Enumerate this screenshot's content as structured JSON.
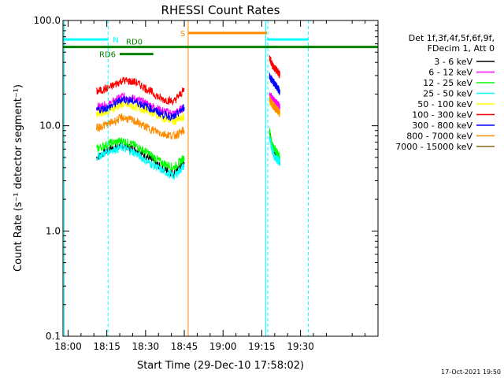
{
  "chart_data": {
    "type": "line",
    "title": "RHESSI Count Rates",
    "xlabel": "Start Time (29-Dec-10 17:58:02)",
    "ylabel": "Count Rate (s⁻¹ detector segment⁻¹)",
    "yscale": "log",
    "ylim": [
      0.1,
      100.0
    ],
    "xlim": [
      "17:58:02",
      "20:00:00"
    ],
    "x_ticks": [
      "18:00",
      "18:15",
      "18:30",
      "18:45",
      "19:00",
      "19:15",
      "19:30"
    ],
    "y_ticks": [
      "0.1",
      "1.0",
      "10.0",
      "100.0"
    ],
    "grid": false,
    "legend_position": "right",
    "legend_header": [
      "Det 1f,3f,4f,5f,6f,9f,",
      "FDecim 1, Att 0"
    ],
    "timestamp": "17-Oct-2021 19:50",
    "series": [
      {
        "name": "3 - 6 keV",
        "color": "#000000",
        "segments": [
          {
            "x": [
              "18:11",
              "18:16",
              "18:21",
              "18:26",
              "18:31",
              "18:36",
              "18:41",
              "18:45"
            ],
            "y": [
              5.0,
              6.0,
              6.5,
              6.0,
              5.0,
              4.0,
              3.5,
              4.5
            ]
          },
          {
            "x": [
              "19:18",
              "19:19",
              "19:20",
              "19:21",
              "19:22"
            ],
            "y": [
              9.0,
              6.0,
              5.5,
              5.0,
              4.5
            ]
          }
        ]
      },
      {
        "name": "6 - 12 keV",
        "color": "#ff00ff",
        "segments": [
          {
            "x": [
              "18:11",
              "18:16",
              "18:21",
              "18:26",
              "18:31",
              "18:36",
              "18:41",
              "18:45"
            ],
            "y": [
              15,
              16,
              19,
              18,
              16,
              14,
              13,
              15
            ]
          },
          {
            "x": [
              "19:18",
              "19:19",
              "19:20",
              "19:21",
              "19:22"
            ],
            "y": [
              20,
              18,
              17,
              16,
              15
            ]
          }
        ]
      },
      {
        "name": "12 - 25 keV",
        "color": "#00ff00",
        "segments": [
          {
            "x": [
              "18:11",
              "18:16",
              "18:21",
              "18:26",
              "18:31",
              "18:36",
              "18:41",
              "18:45"
            ],
            "y": [
              6.0,
              6.8,
              7.2,
              6.5,
              5.5,
              4.5,
              4.0,
              5.0
            ]
          },
          {
            "x": [
              "19:18",
              "19:19",
              "19:20",
              "19:21",
              "19:22"
            ],
            "y": [
              9.0,
              6.5,
              6.0,
              5.5,
              5.0
            ]
          }
        ]
      },
      {
        "name": "25 - 50 keV",
        "color": "#00ffff",
        "segments": [
          {
            "x": [
              "18:11",
              "18:16",
              "18:21",
              "18:26",
              "18:31",
              "18:36",
              "18:41",
              "18:45"
            ],
            "y": [
              5.0,
              5.8,
              6.2,
              5.5,
              4.5,
              3.8,
              3.3,
              4.2
            ]
          },
          {
            "x": [
              "19:18",
              "19:19",
              "19:20",
              "19:21",
              "19:22"
            ],
            "y": [
              7.5,
              6.0,
              5.0,
              4.8,
              4.5
            ]
          }
        ]
      },
      {
        "name": "50 - 100 keV",
        "color": "#ffff00",
        "segments": [
          {
            "x": [
              "18:11",
              "18:16",
              "18:21",
              "18:26",
              "18:31",
              "18:36",
              "18:41",
              "18:45"
            ],
            "y": [
              13,
              14,
              16,
              15,
              14,
              12,
              11,
              12
            ]
          },
          {
            "x": [
              "19:18",
              "19:19",
              "19:20",
              "19:21",
              "19:22"
            ],
            "y": [
              17,
              16,
              15,
              14,
              13
            ]
          }
        ]
      },
      {
        "name": "100 - 300 keV",
        "color": "#ff0000",
        "segments": [
          {
            "x": [
              "18:11",
              "18:16",
              "18:21",
              "18:26",
              "18:31",
              "18:36",
              "18:41",
              "18:45"
            ],
            "y": [
              21,
              23,
              27,
              26,
              22,
              18,
              17,
              22
            ]
          },
          {
            "x": [
              "19:18",
              "19:19",
              "19:20",
              "19:21",
              "19:22"
            ],
            "y": [
              45,
              38,
              35,
              33,
              30
            ]
          }
        ]
      },
      {
        "name": "300 - 800 keV",
        "color": "#0000ff",
        "segments": [
          {
            "x": [
              "18:11",
              "18:16",
              "18:21",
              "18:26",
              "18:31",
              "18:36",
              "18:41",
              "18:45"
            ],
            "y": [
              14,
              15,
              18,
              17,
              15,
              13,
              12,
              15
            ]
          },
          {
            "x": [
              "19:18",
              "19:19",
              "19:20",
              "19:21",
              "19:22"
            ],
            "y": [
              30,
              27,
              25,
              23,
              21
            ]
          }
        ]
      },
      {
        "name": "800 - 7000 keV",
        "color": "#ff8c00",
        "segments": [
          {
            "x": [
              "18:11",
              "18:16",
              "18:21",
              "18:26",
              "18:31",
              "18:36",
              "18:41",
              "18:45"
            ],
            "y": [
              9.5,
              10.5,
              12,
              11,
              9.5,
              8.5,
              8.0,
              9.0
            ]
          },
          {
            "x": [
              "19:18",
              "19:19",
              "19:20",
              "19:21",
              "19:22"
            ],
            "y": [
              18,
              16,
              15,
              14,
              13
            ]
          }
        ]
      },
      {
        "name": "7000 - 15000 keV",
        "color": "#8b6914",
        "segments": []
      }
    ],
    "annotations": {
      "attenuator_S": {
        "label": "S",
        "color": "#ff8c00",
        "x_start": "18:46:30",
        "x_end": "19:17",
        "y": 76
      },
      "night_N": {
        "label": "N",
        "color": "#00ffff",
        "intervals": [
          [
            "17:58:02",
            "18:15:30"
          ],
          [
            "19:17",
            "19:33"
          ]
        ],
        "y": 66
      },
      "decimation": [
        {
          "label": "RD0",
          "color": "#008000",
          "x_start": "17:58:02",
          "x_end": "20:00:00",
          "y": 56
        },
        {
          "label": "RD6",
          "color": "#008000",
          "x_start": "18:20",
          "x_end": "18:33",
          "y": 48
        }
      ],
      "event_lines": [
        {
          "x": "17:58:30",
          "color": "#00ffff",
          "style": "solid"
        },
        {
          "x": "18:15:30",
          "color": "#00ffff",
          "style": "dashed"
        },
        {
          "x": "18:46:30",
          "color": "#ff8c00",
          "style": "solid"
        },
        {
          "x": "19:16:30",
          "color": "#00ffff",
          "style": "solid"
        },
        {
          "x": "19:17:20",
          "color": "#00ffff",
          "style": "dashed"
        },
        {
          "x": "19:33:00",
          "color": "#00ffff",
          "style": "dashed"
        }
      ]
    }
  }
}
